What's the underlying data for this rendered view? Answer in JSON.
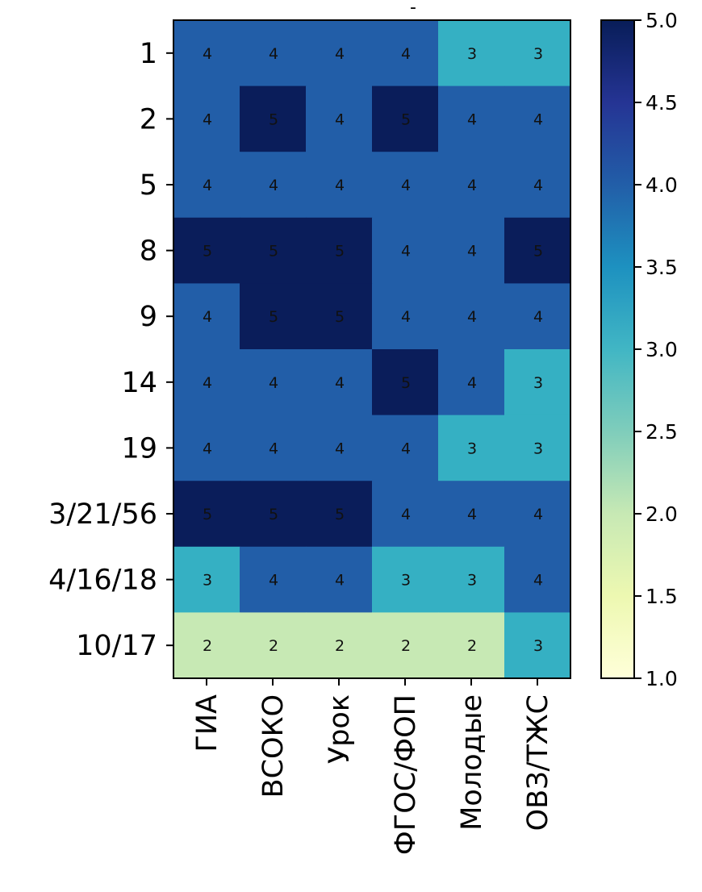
{
  "chart_data": {
    "type": "heatmap",
    "title": "-",
    "rows": [
      "1",
      "2",
      "5",
      "8",
      "9",
      "14",
      "19",
      "3/21/56",
      "4/16/18",
      "10/17"
    ],
    "columns": [
      "ГИА",
      "ВСОКО",
      "Урок",
      "ФГОС/ФОП",
      "Молодые",
      "ОВЗ/ТЖС"
    ],
    "values": [
      [
        4,
        4,
        4,
        4,
        3,
        3
      ],
      [
        4,
        5,
        4,
        5,
        4,
        4
      ],
      [
        4,
        4,
        4,
        4,
        4,
        4
      ],
      [
        5,
        5,
        5,
        4,
        4,
        5
      ],
      [
        4,
        5,
        5,
        4,
        4,
        4
      ],
      [
        4,
        4,
        4,
        5,
        4,
        3
      ],
      [
        4,
        4,
        4,
        4,
        3,
        3
      ],
      [
        5,
        5,
        5,
        4,
        4,
        4
      ],
      [
        3,
        4,
        4,
        3,
        3,
        4
      ],
      [
        2,
        2,
        2,
        2,
        2,
        3
      ]
    ],
    "colorbar": {
      "min": 1.0,
      "max": 5.0,
      "ticks": [
        "1.0",
        "1.5",
        "2.0",
        "2.5",
        "3.0",
        "3.5",
        "4.0",
        "4.5",
        "5.0"
      ],
      "colormap": "YlGnBu",
      "stops": [
        "#ffffd9",
        "#edf8b1",
        "#c7e9b4",
        "#7fcdbb",
        "#41b6c4",
        "#1d91c0",
        "#225ea8",
        "#253494",
        "#081d58"
      ]
    },
    "cell_colors": {
      "2": "#c7e9b4",
      "3": "#35b0c3",
      "4": "#225ea8",
      "5": "#0a1d5a"
    }
  }
}
